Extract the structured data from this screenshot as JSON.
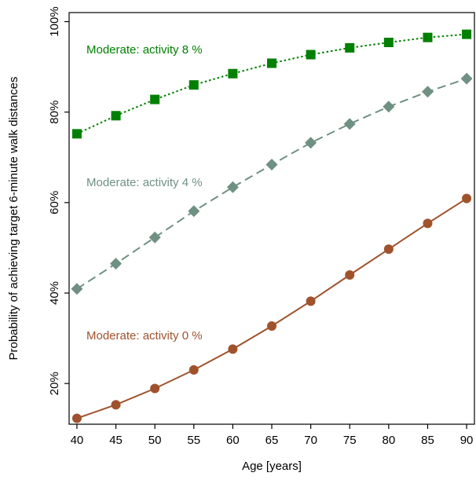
{
  "chart_data": {
    "type": "line",
    "xlabel": "Age [years]",
    "ylabel": "Probability of achieving target 6-minute walk distances",
    "x": [
      40,
      45,
      50,
      55,
      60,
      65,
      70,
      75,
      80,
      85,
      90
    ],
    "x_ticks": [
      "40",
      "45",
      "50",
      "55",
      "60",
      "65",
      "70",
      "75",
      "80",
      "85",
      "90"
    ],
    "y_ticks": [
      {
        "value": 20,
        "label": "20%"
      },
      {
        "value": 40,
        "label": "40%"
      },
      {
        "value": 60,
        "label": "60%"
      },
      {
        "value": 80,
        "label": "80%"
      },
      {
        "value": 100,
        "label": "100%"
      }
    ],
    "xlim": [
      39,
      91
    ],
    "ylim": [
      11,
      102
    ],
    "grid": false,
    "legend": "inline labels",
    "series": [
      {
        "name": "Moderate: activity 8 %",
        "color": "#008000",
        "marker": "square",
        "line_style": "dotted",
        "values": [
          75.2,
          79.2,
          82.8,
          86.0,
          88.5,
          90.8,
          92.7,
          94.2,
          95.4,
          96.5,
          97.2
        ]
      },
      {
        "name": "Moderate: activity 4 %",
        "color": "#6f9083",
        "marker": "diamond",
        "line_style": "dashed",
        "values": [
          40.9,
          46.5,
          52.3,
          58.1,
          63.4,
          68.4,
          73.2,
          77.4,
          81.2,
          84.5,
          87.4
        ]
      },
      {
        "name": "Moderate: activity 0 %",
        "color": "#a0522d",
        "marker": "circle",
        "line_style": "solid",
        "values": [
          12.3,
          15.3,
          18.9,
          23.0,
          27.6,
          32.7,
          38.2,
          44.0,
          49.7,
          55.4,
          60.9
        ]
      }
    ]
  }
}
